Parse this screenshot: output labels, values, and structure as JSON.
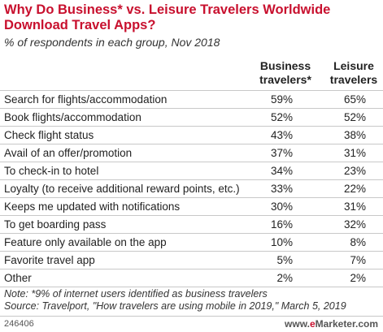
{
  "header": {
    "title": "Why Do Business* vs. Leisure Travelers Worldwide Download Travel Apps?",
    "subtitle": "% of respondents in each group, Nov 2018"
  },
  "chart_data": {
    "type": "table",
    "title": "Why Do Business* vs. Leisure Travelers Worldwide Download Travel Apps?",
    "subtitle": "% of respondents in each group, Nov 2018",
    "columns": [
      "Business travelers*",
      "Leisure travelers"
    ],
    "rows": [
      {
        "label": "Search for flights/accommodation",
        "business": "59%",
        "leisure": "65%"
      },
      {
        "label": "Book flights/accommodation",
        "business": "52%",
        "leisure": "52%"
      },
      {
        "label": "Check flight status",
        "business": "43%",
        "leisure": "38%"
      },
      {
        "label": "Avail of an offer/promotion",
        "business": "37%",
        "leisure": "31%"
      },
      {
        "label": "To check-in to hotel",
        "business": "34%",
        "leisure": "23%"
      },
      {
        "label": "Loyalty (to receive additional reward points, etc.)",
        "business": "33%",
        "leisure": "22%"
      },
      {
        "label": "Keeps me updated with notifications",
        "business": "30%",
        "leisure": "31%"
      },
      {
        "label": "To get boarding pass",
        "business": "16%",
        "leisure": "32%"
      },
      {
        "label": "Feature only available on the app",
        "business": "10%",
        "leisure": "8%"
      },
      {
        "label": "Favorite travel app",
        "business": "5%",
        "leisure": "7%"
      },
      {
        "label": "Other",
        "business": "2%",
        "leisure": "2%"
      }
    ]
  },
  "footer": {
    "note": "Note: *9% of internet users identified as business travelers",
    "source": "Source: Travelport, \"How travelers are using mobile in 2019,\" March 5, 2019",
    "chart_id": "246406",
    "brand_prefix": "www.",
    "brand_e": "e",
    "brand_suffix": "Marketer.com"
  }
}
